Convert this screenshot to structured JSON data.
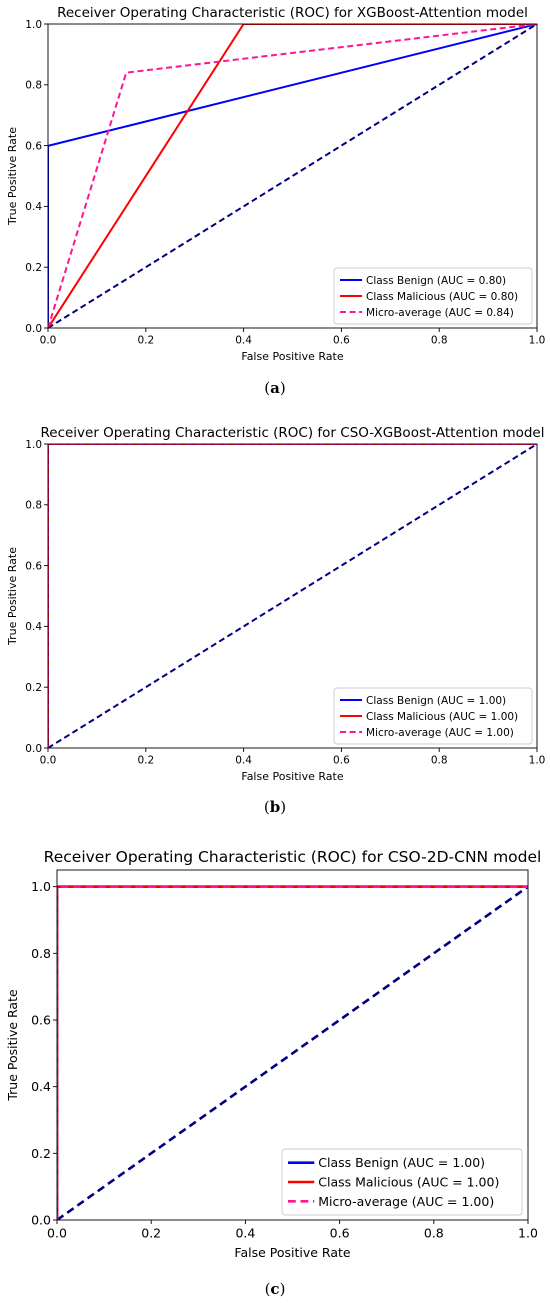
{
  "chart_data": [
    {
      "type": "line",
      "title": "Receiver Operating Characteristic (ROC) for XGBoost-Attention model",
      "xlabel": "False Positive Rate",
      "ylabel": "True Positive Rate",
      "xlim": [
        0,
        1
      ],
      "ylim": [
        0,
        1
      ],
      "xticks": [
        "0.0",
        "0.2",
        "0.4",
        "0.6",
        "0.8",
        "1.0"
      ],
      "yticks": [
        "0.0",
        "0.2",
        "0.4",
        "0.6",
        "0.8",
        "1.0"
      ],
      "grid": false,
      "legend_position": "lower-right",
      "caption_letter": "a",
      "series": [
        {
          "name": "Class Benign (AUC = 0.80)",
          "color": "#0000ff",
          "style": "solid",
          "x": [
            0,
            0,
            0.002,
            1
          ],
          "y": [
            0,
            0.6,
            0.6,
            1
          ]
        },
        {
          "name": "Class Malicious (AUC = 0.80)",
          "color": "#ff0000",
          "style": "solid",
          "x": [
            0,
            0.4,
            1
          ],
          "y": [
            0,
            1.0,
            1.0
          ]
        },
        {
          "name": "Micro-average (AUC = 0.84)",
          "color": "#ff1493",
          "style": "dashed",
          "x": [
            0,
            0.16,
            1
          ],
          "y": [
            0,
            0.84,
            1.0
          ]
        }
      ],
      "chance_line": {
        "color": "#000080",
        "x": [
          0,
          1
        ],
        "y": [
          0,
          1
        ]
      }
    },
    {
      "type": "line",
      "title": "Receiver Operating Characteristic (ROC) for CSO-XGBoost-Attention model",
      "xlabel": "False Positive Rate",
      "ylabel": "True Positive Rate",
      "xlim": [
        0,
        1
      ],
      "ylim": [
        0,
        1
      ],
      "xticks": [
        "0.0",
        "0.2",
        "0.4",
        "0.6",
        "0.8",
        "1.0"
      ],
      "yticks": [
        "0.0",
        "0.2",
        "0.4",
        "0.6",
        "0.8",
        "1.0"
      ],
      "grid": false,
      "legend_position": "lower-right",
      "caption_letter": "b",
      "series": [
        {
          "name": "Class Benign (AUC = 1.00)",
          "color": "#0000ff",
          "style": "solid",
          "x": [
            0,
            0,
            1
          ],
          "y": [
            0,
            1.0,
            1.0
          ]
        },
        {
          "name": "Class Malicious (AUC = 1.00)",
          "color": "#ff0000",
          "style": "solid",
          "x": [
            0,
            0,
            1
          ],
          "y": [
            0,
            1.0,
            1.0
          ]
        },
        {
          "name": "Micro-average (AUC = 1.00)",
          "color": "#ff1493",
          "style": "dashed",
          "x": [
            0,
            0,
            1
          ],
          "y": [
            0,
            1.0,
            1.0
          ]
        }
      ],
      "chance_line": {
        "color": "#000080",
        "x": [
          0,
          1
        ],
        "y": [
          0,
          1
        ]
      }
    },
    {
      "type": "line",
      "title": "Receiver Operating Characteristic (ROC) for CSO-2D-CNN model",
      "xlabel": "False Positive Rate",
      "ylabel": "True Positive Rate",
      "xlim": [
        0,
        1
      ],
      "ylim": [
        0,
        1.05
      ],
      "xticks": [
        "0.0",
        "0.2",
        "0.4",
        "0.6",
        "0.8",
        "1.0"
      ],
      "yticks": [
        "0.0",
        "0.2",
        "0.4",
        "0.6",
        "0.8",
        "1.0"
      ],
      "grid": false,
      "legend_position": "lower-right",
      "caption_letter": "c",
      "series": [
        {
          "name": "Class Benign (AUC = 1.00)",
          "color": "#0000ff",
          "style": "solid",
          "x": [
            0,
            0,
            1
          ],
          "y": [
            0,
            1.0,
            1.0
          ]
        },
        {
          "name": "Class Malicious (AUC = 1.00)",
          "color": "#ff0000",
          "style": "solid",
          "x": [
            0,
            0,
            1
          ],
          "y": [
            0,
            1.0,
            1.0
          ]
        },
        {
          "name": "Micro-average (AUC = 1.00)",
          "color": "#ff1493",
          "style": "dashed",
          "x": [
            0,
            0,
            1
          ],
          "y": [
            0,
            1.0,
            1.0
          ]
        }
      ],
      "chance_line": {
        "color": "#000080",
        "x": [
          0,
          1
        ],
        "y": [
          0,
          1
        ]
      }
    }
  ]
}
